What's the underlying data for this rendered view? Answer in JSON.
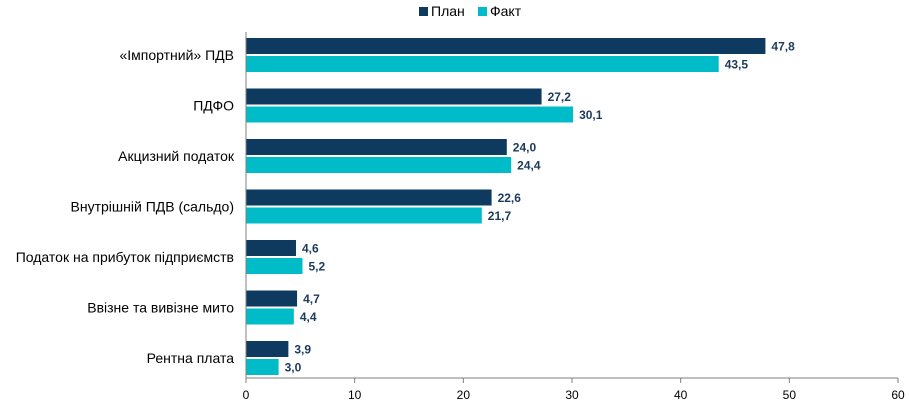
{
  "chart_data": {
    "type": "bar",
    "orientation": "horizontal",
    "title": "",
    "xlabel": "",
    "ylabel": "",
    "categories": [
      "«Імпортний» ПДВ",
      "ПДФО",
      "Акцизний податок",
      "Внутрішній ПДВ (сальдо)",
      "Податок на прибуток підприємств",
      "Ввізне та вивізне мито",
      "Рентна плата"
    ],
    "series": [
      {
        "name": "План",
        "color": "#0e3a5f",
        "values": [
          47.8,
          27.2,
          24.0,
          22.6,
          4.6,
          4.7,
          3.9
        ],
        "labels": [
          "47,8",
          "27,2",
          "24,0",
          "22,6",
          "4,6",
          "4,7",
          "3,9"
        ]
      },
      {
        "name": "Факт",
        "color": "#00bcc8",
        "values": [
          43.5,
          30.1,
          24.4,
          21.7,
          5.2,
          4.4,
          3.0
        ],
        "labels": [
          "43,5",
          "30,1",
          "24,4",
          "21,7",
          "5,2",
          "4,4",
          "3,0"
        ]
      }
    ],
    "xlim": [
      0,
      60
    ],
    "ticks": [
      0,
      10,
      20,
      30,
      40,
      50,
      60
    ],
    "tick_labels": [
      "0",
      "10",
      "20",
      "30",
      "40",
      "50",
      "60"
    ],
    "grid": false,
    "legend_position": "top-center"
  }
}
